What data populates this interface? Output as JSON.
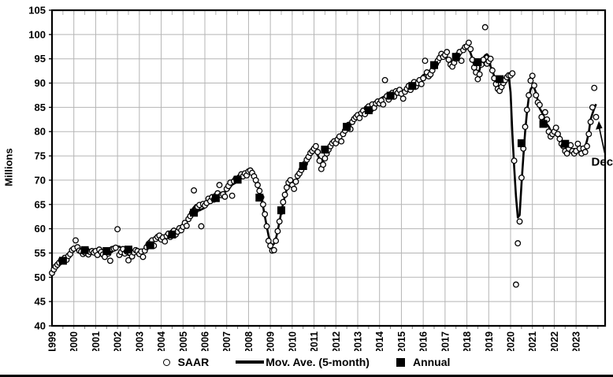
{
  "figure_title": "",
  "ylabel": "Millions",
  "legend": {
    "saar": "SAAR",
    "mov_ave": "Mov. Ave. (5-month)",
    "annual": "Annual"
  },
  "annotation": {
    "text": "Dec"
  },
  "colors": {
    "ink": "#000000",
    "grid": "#b5b5b5",
    "background": "#ffffff"
  },
  "chart_data": {
    "type": "scatter",
    "title": "",
    "xlabel": "",
    "ylabel": "Millions",
    "y_axis": {
      "min": 40,
      "max": 105,
      "step": 5,
      "grid": true
    },
    "x_axis": {
      "first_label": 1999,
      "last_label": 2023,
      "label_step": 1,
      "minor_tick_half_years": true,
      "domain_end": 2024.33
    },
    "legend_position": "bottom-center",
    "series": [
      {
        "name": "SAAR",
        "marker": "open-circle",
        "start": "1999-01",
        "end": "2023-12",
        "monthly_by_year": [
          {
            "year": 1999,
            "values": [
              50.9,
              51.6,
              52.2,
              52.6,
              53.0,
              53.5,
              53.4,
              54.0,
              53.6,
              54.4,
              54.8,
              55.6
            ]
          },
          {
            "year": 2000,
            "values": [
              55.9,
              57.6,
              56.2,
              55.5,
              55.3,
              54.8,
              55.1,
              55.6,
              54.7,
              55.2,
              55.4,
              55.1
            ]
          },
          {
            "year": 2001,
            "values": [
              55.4,
              54.6,
              55.7,
              55.2,
              54.7,
              54.2,
              55.3,
              54.9,
              53.4,
              55.8,
              55.9,
              56.1
            ]
          },
          {
            "year": 2002,
            "values": [
              59.9,
              54.6,
              55.2,
              55.8,
              54.9,
              55.3,
              53.5,
              55.0,
              54.3,
              55.1,
              55.6,
              55.4
            ]
          },
          {
            "year": 2003,
            "values": [
              54.8,
              55.3,
              54.2,
              55.5,
              56.2,
              56.8,
              57.2,
              57.6,
              56.5,
              57.9,
              58.3,
              58.6
            ]
          },
          {
            "year": 2004,
            "values": [
              57.8,
              58.2,
              57.4,
              58.5,
              59.0,
              58.3,
              59.2,
              59.6,
              58.8,
              59.4,
              60.1,
              59.7
            ]
          },
          {
            "year": 2005,
            "values": [
              60.4,
              61.2,
              60.6,
              62.0,
              62.6,
              63.3,
              67.9,
              63.8,
              64.5,
              64.9,
              60.5,
              65.1
            ]
          },
          {
            "year": 2006,
            "values": [
              64.8,
              65.3,
              66.2,
              65.7,
              66.5,
              66.0,
              66.8,
              67.3,
              69.0,
              66.9,
              67.1,
              66.6
            ]
          },
          {
            "year": 2007,
            "values": [
              68.2,
              68.8,
              69.5,
              66.8,
              69.8,
              70.3,
              70.0,
              70.6,
              71.2,
              70.8,
              71.4,
              71.0
            ]
          },
          {
            "year": 2008,
            "values": [
              71.8,
              72.0,
              71.5,
              70.8,
              70.0,
              69.0,
              67.8,
              66.5,
              65.0,
              63.0,
              60.5,
              57.5
            ]
          },
          {
            "year": 2009,
            "values": [
              56.5,
              55.5,
              55.6,
              57.5,
              59.5,
              61.5,
              63.5,
              65.5,
              67.0,
              68.5,
              69.5,
              70.0
            ]
          },
          {
            "year": 2010,
            "values": [
              69.0,
              68.2,
              69.7,
              70.9,
              71.4,
              72.1,
              72.7,
              73.4,
              74.2,
              74.8,
              75.6,
              76.0
            ]
          },
          {
            "year": 2011,
            "values": [
              76.5,
              77.0,
              75.8,
              74.0,
              72.3,
              73.2,
              74.5,
              75.5,
              76.3,
              77.0,
              77.6,
              78.0
            ]
          },
          {
            "year": 2012,
            "values": [
              77.6,
              78.4,
              79.0,
              78.0,
              79.5,
              80.2,
              80.8,
              81.4,
              80.5,
              82.0,
              82.6,
              83.0
            ]
          },
          {
            "year": 2013,
            "values": [
              83.4,
              82.8,
              83.8,
              84.3,
              83.6,
              84.8,
              85.2,
              84.4,
              85.6,
              84.9,
              85.8,
              86.2
            ]
          },
          {
            "year": 2014,
            "values": [
              85.8,
              86.4,
              85.6,
              90.6,
              87.3,
              86.6,
              87.6,
              88.0,
              87.2,
              88.3,
              88.0,
              88.6
            ]
          },
          {
            "year": 2015,
            "values": [
              87.8,
              86.8,
              88.2,
              88.8,
              89.4,
              88.6,
              89.6,
              90.2,
              89.3,
              90.0,
              90.6,
              89.8
            ]
          },
          {
            "year": 2016,
            "values": [
              91.0,
              94.6,
              92.2,
              91.4,
              91.8,
              92.6,
              93.4,
              94.0,
              94.6,
              95.2,
              96.0,
              95.4
            ]
          },
          {
            "year": 2017,
            "values": [
              95.8,
              96.4,
              94.8,
              93.8,
              93.4,
              94.2,
              95.0,
              95.8,
              96.4,
              94.6,
              96.8,
              97.4
            ]
          },
          {
            "year": 2018,
            "values": [
              97.6,
              98.3,
              97.0,
              94.8,
              93.2,
              92.2,
              90.8,
              91.8,
              93.8,
              94.8,
              101.5,
              94.0
            ]
          },
          {
            "year": 2019,
            "values": [
              94.5,
              95.0,
              92.6,
              91.0,
              89.8,
              88.8,
              88.4,
              89.2,
              90.0,
              90.6,
              91.2,
              91.6
            ]
          },
          {
            "year": 2020,
            "values": [
              91.6,
              92.0,
              74.0,
              48.5,
              57.0,
              61.5,
              70.5,
              76.5,
              81.0,
              84.5,
              87.5,
              90.5
            ]
          },
          {
            "year": 2021,
            "values": [
              91.5,
              89.5,
              87.5,
              86.0,
              85.5,
              83.0,
              82.0,
              84.0,
              82.5,
              80.0,
              79.0,
              79.5
            ]
          },
          {
            "year": 2022,
            "values": [
              80.0,
              80.8,
              79.5,
              78.5,
              77.5,
              77.0,
              76.0,
              75.5,
              76.5,
              77.2,
              76.0,
              75.5
            ]
          },
          {
            "year": 2023,
            "values": [
              76.0,
              77.5,
              76.5,
              75.5,
              76.5,
              75.8,
              77.0,
              79.5,
              82.0,
              85.0,
              89.0,
              83.0
            ]
          }
        ]
      },
      {
        "name": "Mov. Ave. (5-month)",
        "marker": "line",
        "derived_from": "SAAR",
        "window_months": 5
      },
      {
        "name": "Annual",
        "marker": "filled-square",
        "years": [
          1999,
          2000,
          2001,
          2002,
          2003,
          2004,
          2005,
          2006,
          2007,
          2008,
          2009,
          2010,
          2011,
          2012,
          2013,
          2014,
          2015,
          2016,
          2017,
          2018,
          2019,
          2020,
          2021,
          2022
        ],
        "values": [
          53.4,
          55.6,
          55.4,
          55.7,
          56.6,
          58.8,
          63.3,
          66.3,
          70.1,
          66.4,
          63.8,
          72.9,
          76.3,
          81.0,
          84.4,
          87.4,
          89.4,
          93.7,
          95.4,
          94.3,
          90.8,
          77.6,
          81.6,
          77.5
        ]
      }
    ]
  }
}
